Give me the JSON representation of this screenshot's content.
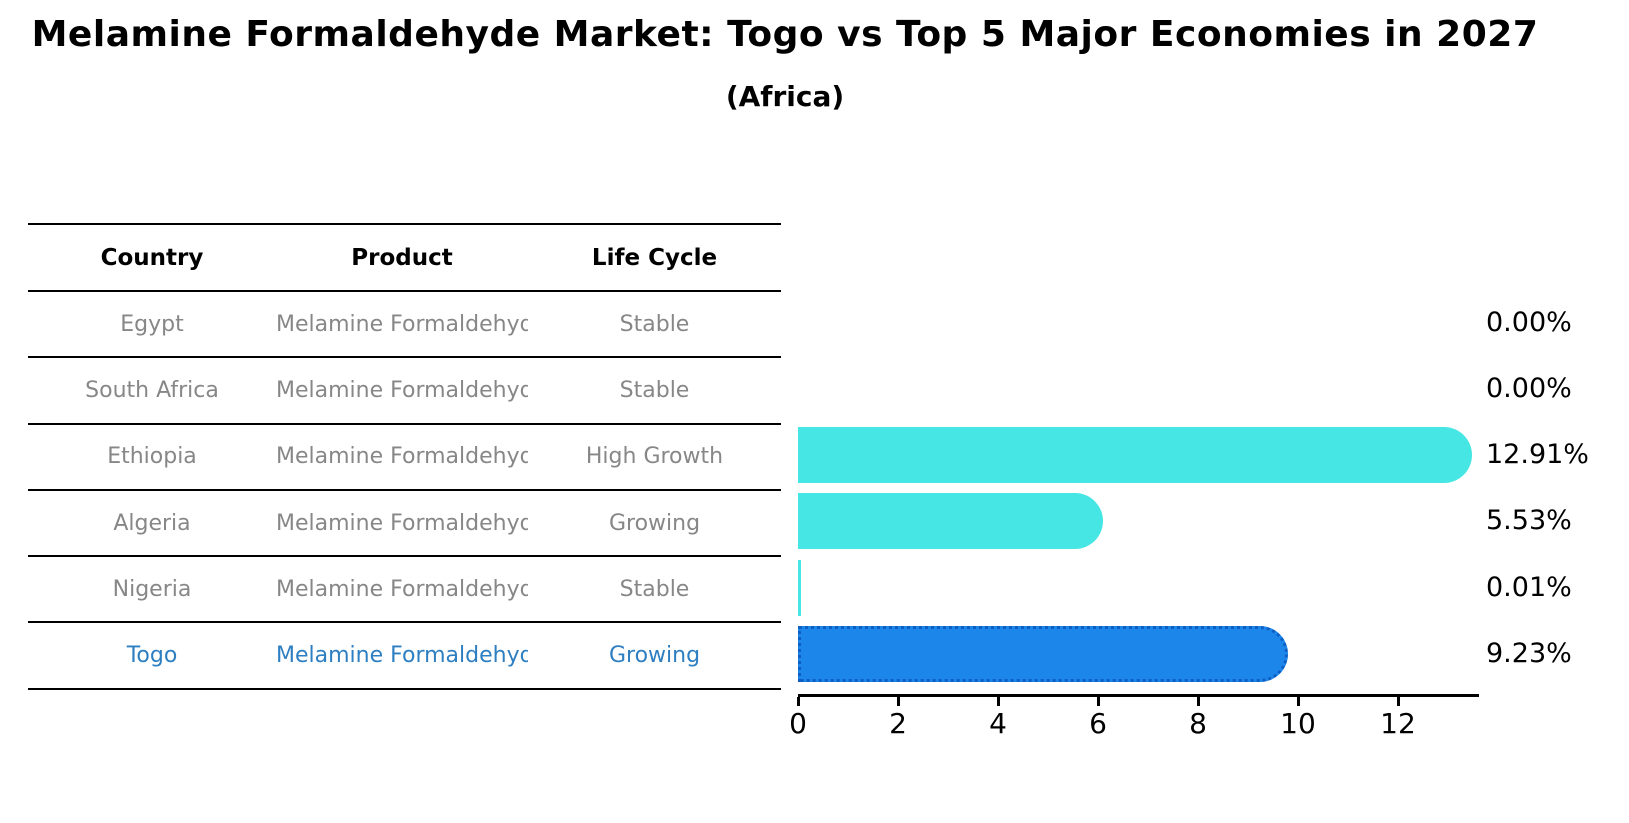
{
  "chart_data": {
    "type": "bar",
    "orientation": "horizontal",
    "title": "Melamine Formaldehyde Market: Togo vs Top 5 Major Economies in 2027",
    "subtitle": "(Africa)",
    "categories": [
      "Egypt",
      "South Africa",
      "Ethiopia",
      "Algeria",
      "Nigeria",
      "Togo"
    ],
    "values": [
      0.0,
      0.0,
      12.91,
      5.53,
      0.01,
      9.23
    ],
    "value_labels": [
      "0.00%",
      "0.00%",
      "12.91%",
      "5.53%",
      "0.01%",
      "9.23%"
    ],
    "highlight_index": 5,
    "xlim": [
      0,
      13.6
    ],
    "x_ticks": [
      "0",
      "2",
      "4",
      "6",
      "8",
      "10",
      "12"
    ],
    "grid": false,
    "legend": false,
    "bar_color": "#45e6e3",
    "highlight_bar_color": "#1d86ea",
    "highlight_bar_edge_color": "#0d5fc4",
    "value_label_color": "#000000"
  },
  "table": {
    "columns": [
      "Country",
      "Product",
      "Life Cycle"
    ],
    "rows": [
      {
        "country": "Egypt",
        "product": "Melamine Formaldehyde",
        "life_cycle": "Stable",
        "highlight": false
      },
      {
        "country": "South Africa",
        "product": "Melamine Formaldehyde",
        "life_cycle": "Stable",
        "highlight": false
      },
      {
        "country": "Ethiopia",
        "product": "Melamine Formaldehyde",
        "life_cycle": "High Growth",
        "highlight": false
      },
      {
        "country": "Algeria",
        "product": "Melamine Formaldehyde",
        "life_cycle": "Growing",
        "highlight": false
      },
      {
        "country": "Nigeria",
        "product": "Melamine Formaldehyde",
        "life_cycle": "Stable",
        "highlight": false
      },
      {
        "country": "Togo",
        "product": "Melamine Formaldehyde",
        "life_cycle": "Growing",
        "highlight": true
      }
    ],
    "text_color": "#878787",
    "highlight_text_color": "#2d7fc1",
    "header_text_color": "#000000"
  }
}
